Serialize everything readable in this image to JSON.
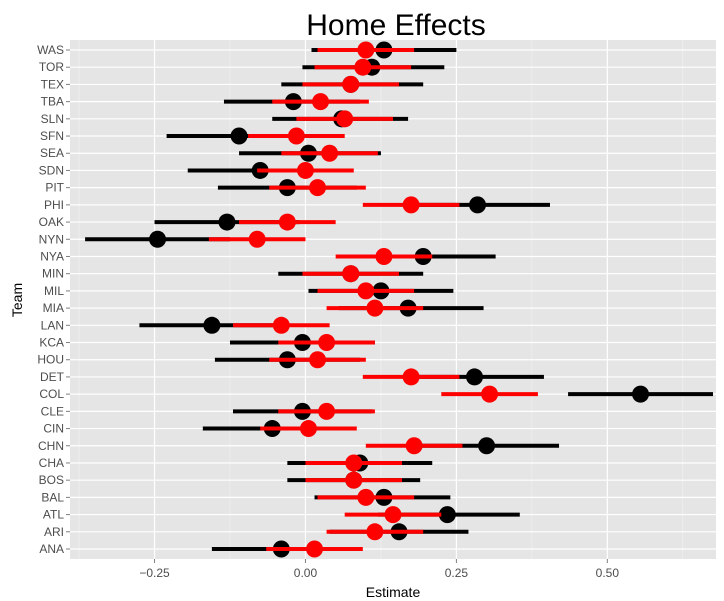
{
  "chart_data": {
    "type": "scatter",
    "title": "Home Effects",
    "xlabel": "Estimate",
    "ylabel": "Team",
    "xlim": [
      -0.39,
      0.68
    ],
    "x_ticks": [
      -0.25,
      0.0,
      0.25,
      0.5
    ],
    "x_tick_labels": [
      "−0.25",
      "0.00",
      "0.25",
      "0.50"
    ],
    "grid": true,
    "categories": [
      "ANA",
      "ARI",
      "ATL",
      "BAL",
      "BOS",
      "CHA",
      "CHN",
      "CIN",
      "CLE",
      "COL",
      "DET",
      "HOU",
      "KCA",
      "LAN",
      "MIA",
      "MIL",
      "MIN",
      "NYA",
      "NYN",
      "OAK",
      "PHI",
      "PIT",
      "SDN",
      "SEA",
      "SFN",
      "SLN",
      "TBA",
      "TEX",
      "TOR",
      "WAS"
    ],
    "series": [
      {
        "color": "#000000",
        "estimate": [
          -0.04,
          0.155,
          0.235,
          0.13,
          0.08,
          0.09,
          0.3,
          -0.055,
          -0.005,
          0.555,
          0.28,
          -0.03,
          -0.005,
          -0.155,
          0.17,
          0.125,
          0.075,
          0.195,
          -0.245,
          -0.13,
          0.285,
          -0.03,
          -0.075,
          0.005,
          -0.11,
          0.06,
          -0.02,
          0.075,
          0.11,
          0.13
        ],
        "lower": [
          -0.155,
          0.04,
          0.12,
          0.015,
          -0.03,
          -0.03,
          0.18,
          -0.17,
          -0.12,
          0.435,
          0.165,
          -0.15,
          -0.125,
          -0.275,
          0.055,
          0.005,
          -0.045,
          0.075,
          -0.365,
          -0.25,
          0.165,
          -0.145,
          -0.195,
          -0.11,
          -0.23,
          -0.055,
          -0.135,
          -0.04,
          -0.005,
          0.01
        ],
        "upper": [
          0.07,
          0.27,
          0.355,
          0.24,
          0.19,
          0.21,
          0.42,
          0.06,
          0.11,
          0.675,
          0.395,
          0.09,
          0.115,
          -0.04,
          0.295,
          0.245,
          0.195,
          0.315,
          -0.125,
          -0.01,
          0.405,
          0.085,
          0.045,
          0.125,
          0.01,
          0.17,
          0.09,
          0.195,
          0.23,
          0.25
        ]
      },
      {
        "color": "#ff0000",
        "estimate": [
          0.015,
          0.115,
          0.145,
          0.1,
          0.08,
          0.08,
          0.18,
          0.005,
          0.035,
          0.305,
          0.175,
          0.02,
          0.035,
          -0.04,
          0.115,
          0.1,
          0.075,
          0.13,
          -0.08,
          -0.03,
          0.175,
          0.02,
          0.0,
          0.04,
          -0.015,
          0.065,
          0.025,
          0.075,
          0.095,
          0.1
        ],
        "lower": [
          -0.065,
          0.035,
          0.065,
          0.02,
          0.0,
          0.0,
          0.1,
          -0.075,
          -0.045,
          0.225,
          0.095,
          -0.06,
          -0.045,
          -0.12,
          0.035,
          0.02,
          -0.005,
          0.05,
          -0.16,
          -0.11,
          0.095,
          -0.06,
          -0.08,
          -0.04,
          -0.095,
          -0.015,
          -0.055,
          -0.005,
          0.015,
          0.02
        ],
        "upper": [
          0.095,
          0.195,
          0.225,
          0.18,
          0.16,
          0.16,
          0.26,
          0.085,
          0.115,
          0.385,
          0.255,
          0.1,
          0.115,
          0.04,
          0.195,
          0.18,
          0.155,
          0.21,
          0.0,
          0.05,
          0.255,
          0.1,
          0.08,
          0.12,
          0.065,
          0.145,
          0.105,
          0.155,
          0.175,
          0.18
        ]
      }
    ]
  }
}
